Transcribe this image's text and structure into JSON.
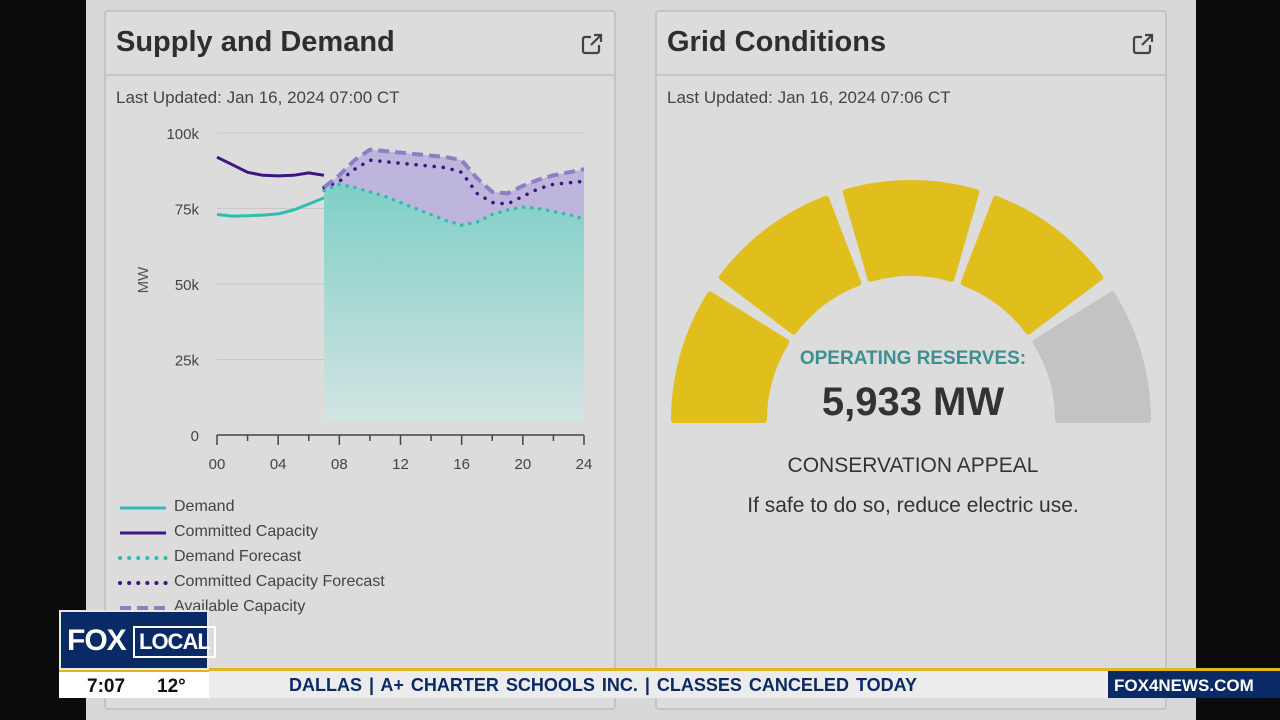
{
  "supply_panel": {
    "title": "Supply and Demand",
    "last_updated": "Last Updated: Jan 16, 2024 07:00 CT",
    "external_link_icon": "external-link-icon"
  },
  "grid_panel": {
    "title": "Grid Conditions",
    "last_updated": "Last Updated: Jan 16, 2024 07:06 CT",
    "external_link_icon": "external-link-icon",
    "reserves_label": "OPERATING RESERVES:",
    "reserves_value": "5,933 MW",
    "status_label": "CONSERVATION APPEAL",
    "status_description": "If safe to do so, reduce electric use.",
    "gauge_segments": 5,
    "gauge_active_segments": 4,
    "gauge_active_color": "#e0bf1d",
    "gauge_inactive_color": "#c3c3c3"
  },
  "chart_data": {
    "type": "line",
    "title": "Supply and Demand",
    "xlabel": "",
    "ylabel": "MW",
    "xlim": [
      0,
      24
    ],
    "ylim": [
      0,
      100000
    ],
    "x_ticks": [
      "00",
      "04",
      "08",
      "12",
      "16",
      "20",
      "24"
    ],
    "y_ticks": [
      "0",
      "25k",
      "50k",
      "75k",
      "100k"
    ],
    "grid": true,
    "legend_position": "bottom",
    "series": [
      {
        "name": "Demand",
        "style": "solid",
        "color": "#2fbcb2",
        "x": [
          0,
          1,
          2,
          3,
          4,
          5,
          6,
          7
        ],
        "y": [
          73000,
          72500,
          72600,
          72800,
          73200,
          74500,
          76500,
          78500
        ]
      },
      {
        "name": "Committed Capacity",
        "style": "solid",
        "color": "#3f1585",
        "x": [
          0,
          1,
          2,
          3,
          4,
          5,
          6,
          7
        ],
        "y": [
          92000,
          89500,
          87000,
          86000,
          85800,
          86000,
          86800,
          86000
        ]
      },
      {
        "name": "Demand Forecast",
        "style": "dotted",
        "color": "#2fbcb2",
        "x": [
          7,
          8,
          9,
          10,
          11,
          12,
          13,
          14,
          15,
          16,
          17,
          18,
          19,
          20,
          21,
          22,
          23,
          24
        ],
        "y": [
          81000,
          83000,
          82000,
          80500,
          79000,
          77000,
          75000,
          73000,
          71000,
          69500,
          70500,
          73000,
          74500,
          75500,
          75000,
          74000,
          73000,
          71500
        ]
      },
      {
        "name": "Committed Capacity Forecast",
        "style": "dotted",
        "color": "#3f1585",
        "x": [
          7,
          8,
          9,
          10,
          11,
          12,
          13,
          14,
          15,
          16,
          17,
          18,
          19,
          20,
          21,
          22,
          23,
          24
        ],
        "y": [
          82000,
          84000,
          88000,
          91000,
          90500,
          90000,
          89500,
          89000,
          88500,
          87000,
          80000,
          77000,
          76500,
          79000,
          81500,
          83000,
          83500,
          84000
        ]
      },
      {
        "name": "Available Capacity",
        "style": "dashed",
        "color": "#8b7fc5",
        "x": [
          7,
          8,
          9,
          10,
          11,
          12,
          13,
          14,
          15,
          16,
          17,
          18,
          19,
          20,
          21,
          22,
          23,
          24
        ],
        "y": [
          82000,
          86000,
          91000,
          94500,
          94000,
          93500,
          93000,
          92500,
          92000,
          91000,
          85000,
          80500,
          80000,
          82500,
          84500,
          86000,
          87000,
          88000
        ]
      }
    ]
  },
  "broadcast": {
    "logo_fox": "FOX",
    "logo_local": "LOCAL",
    "time": "7:07",
    "temperature": "12°",
    "ticker": "DALLAS  |  A+ CHARTER SCHOOLS INC.  |  CLASSES CANCELED TODAY",
    "website": "FOX4NEWS.COM"
  }
}
